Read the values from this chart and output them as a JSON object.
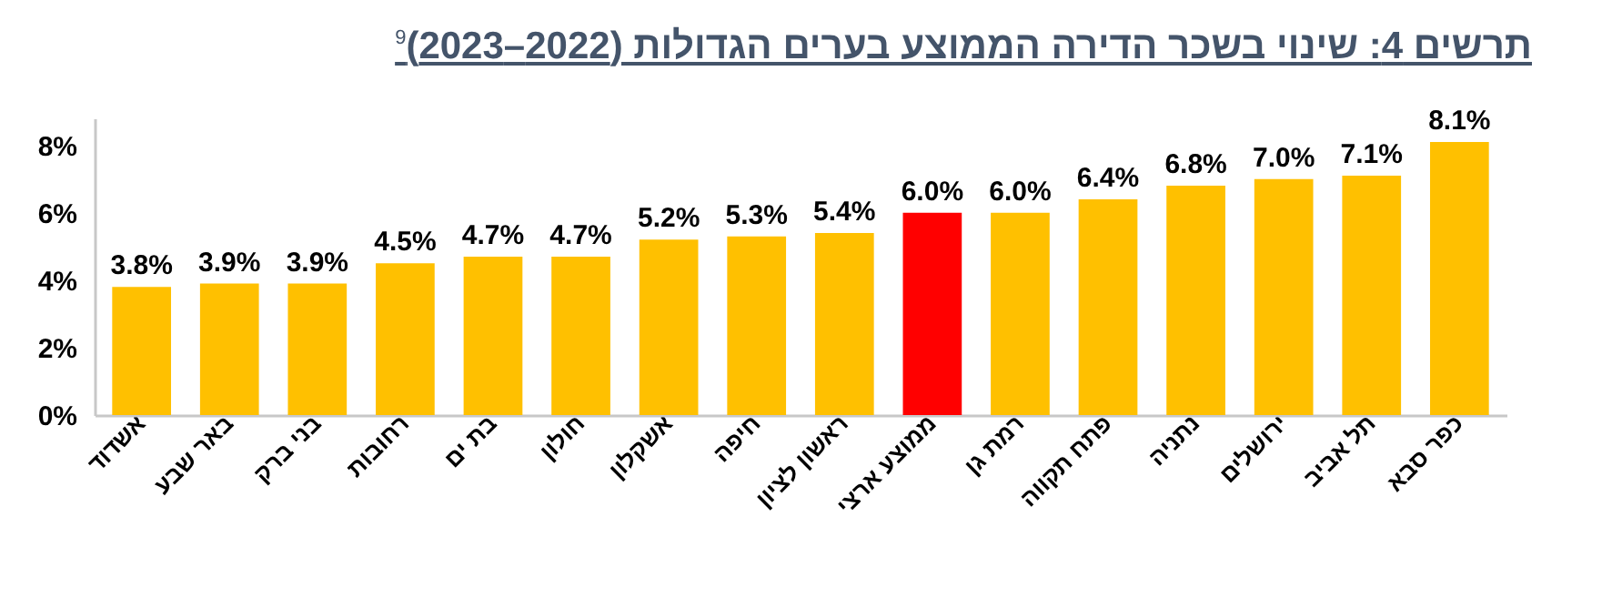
{
  "chart_data": {
    "type": "bar",
    "title": "תרשים 4: שינוי בשכר הדירה הממוצע בערים הגדולות (2022–2023)$^{9}$",
    "categories": [
      "אשדוד",
      "באר שבע",
      "בני ברק",
      "רחובות",
      "בת ים",
      "חולון",
      "אשקלון",
      "חיפה",
      "ראשון לציון",
      "ממוצע ארצי",
      "רמת גן",
      "פתח תקווה",
      "נתניה",
      "ירושלים",
      "תל אביב",
      "כפר סבא"
    ],
    "values": [
      3.8,
      3.9,
      3.9,
      4.5,
      4.7,
      4.7,
      5.2,
      5.3,
      5.4,
      6.0,
      6.0,
      6.4,
      6.8,
      7.0,
      7.1,
      8.1
    ],
    "value_labels": [
      "3.8%",
      "3.9%",
      "3.9%",
      "4.5%",
      "4.7%",
      "4.7%",
      "5.2%",
      "5.3%",
      "5.4%",
      "6.0%",
      "6.0%",
      "6.4%",
      "6.8%",
      "7.0%",
      "7.1%",
      "8.1%"
    ],
    "colors": [
      "#ffc000",
      "#ffc000",
      "#ffc000",
      "#ffc000",
      "#ffc000",
      "#ffc000",
      "#ffc000",
      "#ffc000",
      "#ffc000",
      "#ff0000",
      "#ffc000",
      "#ffc000",
      "#ffc000",
      "#ffc000",
      "#ffc000",
      "#ffc000"
    ],
    "ylim": [
      0,
      8.8
    ],
    "yticks": [
      {
        "value": 0,
        "label": "0%"
      },
      {
        "value": 2,
        "label": "2%"
      },
      {
        "value": 4,
        "label": "4%"
      },
      {
        "value": 6,
        "label": "6%"
      },
      {
        "value": 8,
        "label": "8%"
      }
    ]
  }
}
